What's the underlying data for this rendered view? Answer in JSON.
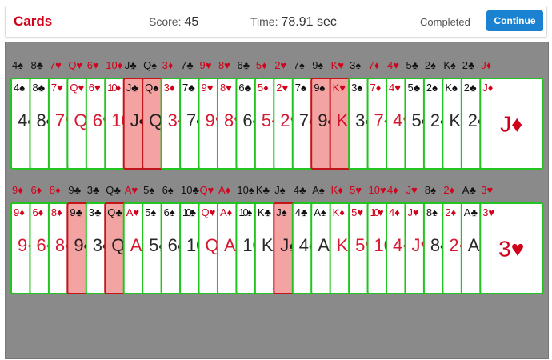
{
  "header": {
    "title": "Cards",
    "score_label": "Score:",
    "score": "45",
    "time_label": "Time:",
    "time": "78.91 sec",
    "status": "Completed",
    "button": "Continue"
  },
  "suit_colors": {
    "red": "#d0021b",
    "black": "#111111"
  },
  "rows": [
    {
      "cards": [
        {
          "label": "4♠",
          "color": "black",
          "selected": false
        },
        {
          "label": "8♣",
          "color": "black",
          "selected": false
        },
        {
          "label": "7♥",
          "color": "red",
          "selected": false
        },
        {
          "label": "Q♥",
          "color": "red",
          "selected": false
        },
        {
          "label": "6♥",
          "color": "red",
          "selected": false
        },
        {
          "label": "10♦",
          "color": "red",
          "selected": false
        },
        {
          "label": "J♣",
          "color": "black",
          "selected": true
        },
        {
          "label": "Q♠",
          "color": "black",
          "selected": true
        },
        {
          "label": "3♦",
          "color": "red",
          "selected": false
        },
        {
          "label": "7♣",
          "color": "black",
          "selected": false
        },
        {
          "label": "9♥",
          "color": "red",
          "selected": false
        },
        {
          "label": "8♥",
          "color": "red",
          "selected": false
        },
        {
          "label": "6♣",
          "color": "black",
          "selected": false
        },
        {
          "label": "5♦",
          "color": "red",
          "selected": false
        },
        {
          "label": "2♥",
          "color": "red",
          "selected": false
        },
        {
          "label": "7♠",
          "color": "black",
          "selected": false
        },
        {
          "label": "9♠",
          "color": "black",
          "selected": true
        },
        {
          "label": "K♥",
          "color": "red",
          "selected": true
        },
        {
          "label": "3♠",
          "color": "black",
          "selected": false
        },
        {
          "label": "7♦",
          "color": "red",
          "selected": false
        },
        {
          "label": "4♥",
          "color": "red",
          "selected": false
        },
        {
          "label": "5♣",
          "color": "black",
          "selected": false
        },
        {
          "label": "2♠",
          "color": "black",
          "selected": false
        },
        {
          "label": "K♠",
          "color": "black",
          "selected": false
        },
        {
          "label": "2♣",
          "color": "black",
          "selected": false
        },
        {
          "label": "J♦",
          "color": "red",
          "selected": false
        }
      ]
    },
    {
      "cards": [
        {
          "label": "9♦",
          "color": "red",
          "selected": false
        },
        {
          "label": "6♦",
          "color": "red",
          "selected": false
        },
        {
          "label": "8♦",
          "color": "red",
          "selected": false
        },
        {
          "label": "9♣",
          "color": "black",
          "selected": true
        },
        {
          "label": "3♣",
          "color": "black",
          "selected": false
        },
        {
          "label": "Q♣",
          "color": "black",
          "selected": true
        },
        {
          "label": "A♥",
          "color": "red",
          "selected": false
        },
        {
          "label": "5♠",
          "color": "black",
          "selected": false
        },
        {
          "label": "6♠",
          "color": "black",
          "selected": false
        },
        {
          "label": "10♣",
          "color": "black",
          "selected": false
        },
        {
          "label": "Q♥",
          "color": "red",
          "selected": false
        },
        {
          "label": "A♦",
          "color": "red",
          "selected": false
        },
        {
          "label": "10♠",
          "color": "black",
          "selected": false
        },
        {
          "label": "K♣",
          "color": "black",
          "selected": false
        },
        {
          "label": "J♠",
          "color": "black",
          "selected": true
        },
        {
          "label": "4♣",
          "color": "black",
          "selected": false
        },
        {
          "label": "A♠",
          "color": "black",
          "selected": false
        },
        {
          "label": "K♦",
          "color": "red",
          "selected": false
        },
        {
          "label": "5♥",
          "color": "red",
          "selected": false
        },
        {
          "label": "10♥",
          "color": "red",
          "selected": false
        },
        {
          "label": "4♦",
          "color": "red",
          "selected": false
        },
        {
          "label": "J♥",
          "color": "red",
          "selected": false
        },
        {
          "label": "8♠",
          "color": "black",
          "selected": false
        },
        {
          "label": "2♦",
          "color": "red",
          "selected": false
        },
        {
          "label": "A♣",
          "color": "black",
          "selected": false
        },
        {
          "label": "3♥",
          "color": "red",
          "selected": false
        }
      ]
    }
  ]
}
